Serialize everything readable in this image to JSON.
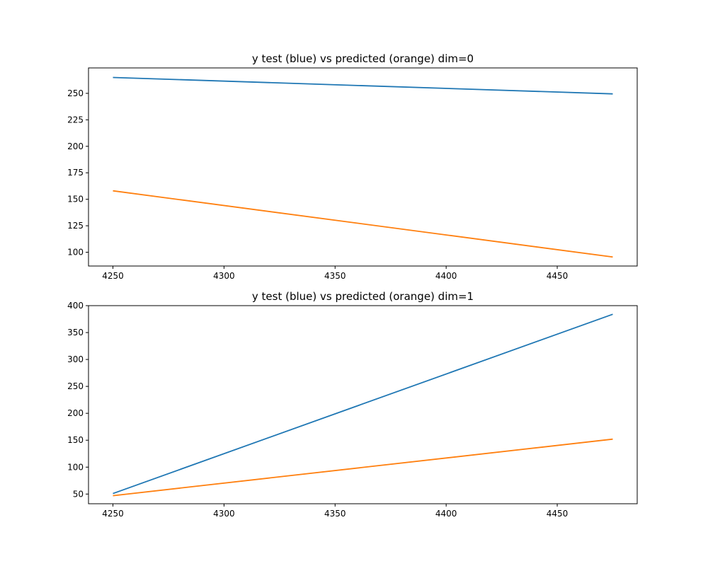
{
  "chart_data": [
    {
      "type": "line",
      "title": "y test (blue) vs predicted (orange) dim=0",
      "xlabel": "",
      "ylabel": "",
      "xlim": [
        4239,
        4486
      ],
      "ylim": [
        87,
        274
      ],
      "xticks": [
        4250,
        4300,
        4350,
        4400,
        4450
      ],
      "yticks": [
        100,
        125,
        150,
        175,
        200,
        225,
        250
      ],
      "grid": false,
      "legend": "none",
      "series": [
        {
          "color": "#1f77b4",
          "x": [
            4250,
            4475
          ],
          "y": [
            265,
            249.5
          ]
        },
        {
          "color": "#ff7f0e",
          "x": [
            4250,
            4475
          ],
          "y": [
            158,
            95.5
          ]
        }
      ]
    },
    {
      "type": "line",
      "title": "y test (blue) vs predicted (orange) dim=1",
      "xlabel": "",
      "ylabel": "",
      "xlim": [
        4239,
        4486
      ],
      "ylim": [
        32,
        400
      ],
      "xticks": [
        4250,
        4300,
        4350,
        4400,
        4450
      ],
      "yticks": [
        50,
        100,
        150,
        200,
        250,
        300,
        350,
        400
      ],
      "grid": false,
      "legend": "none",
      "series": [
        {
          "color": "#1f77b4",
          "x": [
            4250,
            4475
          ],
          "y": [
            51,
            384
          ]
        },
        {
          "color": "#ff7f0e",
          "x": [
            4250,
            4475
          ],
          "y": [
            47,
            152
          ]
        }
      ]
    }
  ]
}
